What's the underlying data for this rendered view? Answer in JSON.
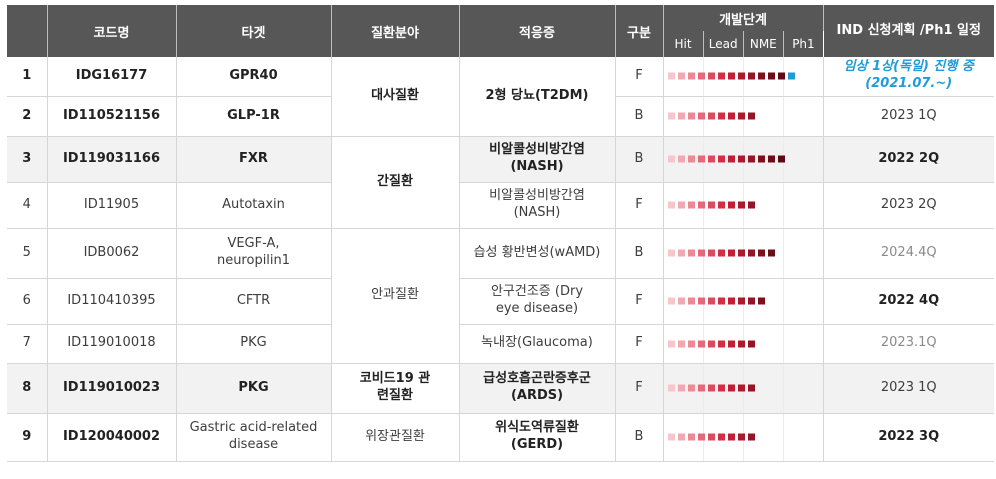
{
  "header": {
    "no": "",
    "code": "코드명",
    "target": "타겟",
    "area": "질환분야",
    "indication": "적응증",
    "type": "구분",
    "stage": "개발단계",
    "stage_sub": [
      "Hit",
      "Lead",
      "NME",
      "Ph1"
    ],
    "schedule": "IND 신청계획 /Ph1 일정"
  },
  "groups": {
    "metabolic": "대사질환",
    "liver": "간질환",
    "eye": "안과질환",
    "covid": "코비드19 관련질환",
    "gi": "위장관질환"
  },
  "rows": [
    {
      "no": "1",
      "code": "IDG16177",
      "target": "GPR40",
      "indication": "",
      "type": "F",
      "schedule": "임상 1상(독일) 진행 중 (2021.07.~)"
    },
    {
      "no": "2",
      "code": "ID110521156",
      "target": "GLP-1R",
      "indication": "",
      "type": "B",
      "schedule": "2023 1Q"
    },
    {
      "no": "3",
      "code": "ID119031166",
      "target": "FXR",
      "indication": "비알콜성비방간염 (NASH)",
      "type": "B",
      "schedule": "2022 2Q"
    },
    {
      "no": "4",
      "code": "ID11905",
      "target": "Autotaxin",
      "indication": "비알콜성비방간염 (NASH)",
      "type": "F",
      "schedule": "2023 2Q"
    },
    {
      "no": "5",
      "code": "IDB0062",
      "target": "VEGF-A, neuropilin1",
      "indication": "습성 황반변성(wAMD)",
      "type": "B",
      "schedule": "2024.4Q"
    },
    {
      "no": "6",
      "code": "ID110410395",
      "target": "CFTR",
      "indication": "안구건조증 (Dry eye disease)",
      "type": "F",
      "schedule": "2022 4Q"
    },
    {
      "no": "7",
      "code": "ID119010018",
      "target": "PKG",
      "indication": "녹내장(Glaucoma)",
      "type": "F",
      "schedule": "2023.1Q"
    },
    {
      "no": "8",
      "code": "ID119010023",
      "target": "PKG",
      "indication": "급성호흡곤란증후군 (ARDS)",
      "type": "F",
      "schedule": "2023 1Q"
    },
    {
      "no": "9",
      "code": "ID120040002",
      "target": "Gastric acid-related disease",
      "indication": "위식도역류질환 (GERD)",
      "type": "B",
      "schedule": "2022 3Q"
    }
  ],
  "indication_merged_1_2": "2형 당뇨(T2DM)",
  "progress": {
    "units": "blocks",
    "values": [
      13,
      9,
      12,
      9,
      11,
      10,
      9,
      9,
      9
    ],
    "final_block_color": [
      "#1f9bd7",
      null,
      null,
      null,
      null,
      null,
      null,
      null,
      null
    ]
  },
  "colors": {
    "header_bg": "#575757",
    "shade_row": "#f2f2f2",
    "progress_ramp": [
      "#f6c6cc",
      "#f1a8b1",
      "#eb8995",
      "#e56978",
      "#de4a5d",
      "#d42e45",
      "#c21f36",
      "#ad1a2e",
      "#961425",
      "#7f0f1d",
      "#6e0c18",
      "#5e0914"
    ],
    "accent_blue": "#1f9bd7"
  }
}
